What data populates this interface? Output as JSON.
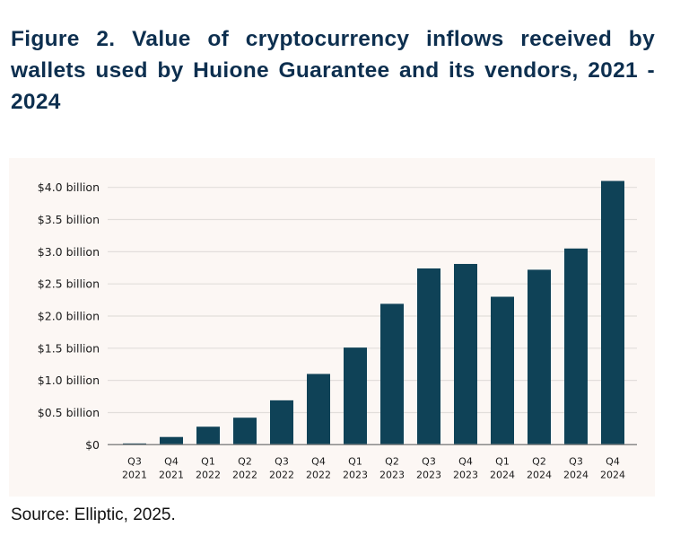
{
  "title": "Figure 2. Value of cryptocurrency inflows received by wallets used by Huione Guarantee and its vendors, 2021 - 2024",
  "source": "Source: Elliptic, 2025.",
  "chart_data": {
    "type": "bar",
    "categories": [
      [
        "Q3",
        "2021"
      ],
      [
        "Q4",
        "2021"
      ],
      [
        "Q1",
        "2022"
      ],
      [
        "Q2",
        "2022"
      ],
      [
        "Q3",
        "2022"
      ],
      [
        "Q4",
        "2022"
      ],
      [
        "Q1",
        "2023"
      ],
      [
        "Q2",
        "2023"
      ],
      [
        "Q3",
        "2023"
      ],
      [
        "Q4",
        "2023"
      ],
      [
        "Q1",
        "2024"
      ],
      [
        "Q2",
        "2024"
      ],
      [
        "Q3",
        "2024"
      ],
      [
        "Q4",
        "2024"
      ]
    ],
    "values": [
      0.02,
      0.12,
      0.28,
      0.42,
      0.69,
      1.1,
      1.51,
      2.19,
      2.74,
      2.81,
      2.3,
      2.72,
      3.05,
      4.1
    ],
    "unit": "billion USD",
    "yticks": [
      0,
      0.5,
      1.0,
      1.5,
      2.0,
      2.5,
      3.0,
      3.5,
      4.0
    ],
    "ytick_labels": [
      "$0",
      "$0.5 billion",
      "$1.0 billion",
      "$1.5 billion",
      "$2.0 billion",
      "$2.5 billion",
      "$3.0 billion",
      "$3.5 billion",
      "$4.0 billion"
    ],
    "ylim": [
      0,
      4.1
    ],
    "grid": true,
    "xlabel": "",
    "ylabel": "",
    "colors": {
      "bar": "#0f4257",
      "grid": "#e2dedb",
      "axis": "#8a8a8a",
      "background": "#fcf7f4"
    }
  }
}
